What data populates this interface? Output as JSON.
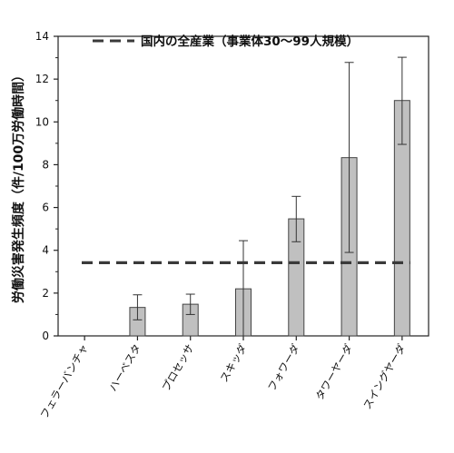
{
  "chart_data": {
    "type": "bar",
    "ylabel": "労働災害発生頻度（件/100万労働時間）",
    "ylim": [
      0,
      14
    ],
    "yticks": [
      0,
      2,
      4,
      6,
      8,
      10,
      12,
      14
    ],
    "categories": [
      "フェラーバンチャ",
      "ハーベスタ",
      "プロセッサ",
      "スキッダ",
      "フォワーダ",
      "タワーヤーダ",
      "スイングヤーダ"
    ],
    "values": [
      0,
      1.33,
      1.48,
      2.2,
      5.47,
      8.33,
      11.0
    ],
    "error_low": [
      0,
      0.75,
      1.0,
      0,
      4.4,
      3.9,
      8.95
    ],
    "error_high": [
      0,
      1.92,
      1.95,
      4.45,
      6.52,
      12.78,
      13.02
    ],
    "reference_line": {
      "label": "国内の全産業（事業体30〜99人規模）",
      "value": 3.42,
      "style": "dashed"
    },
    "legend_position": "top",
    "grid": false,
    "colors": {
      "bar": "#c0c0c0",
      "bar_edge": "#444444",
      "reference": "#3a3a3a"
    }
  }
}
